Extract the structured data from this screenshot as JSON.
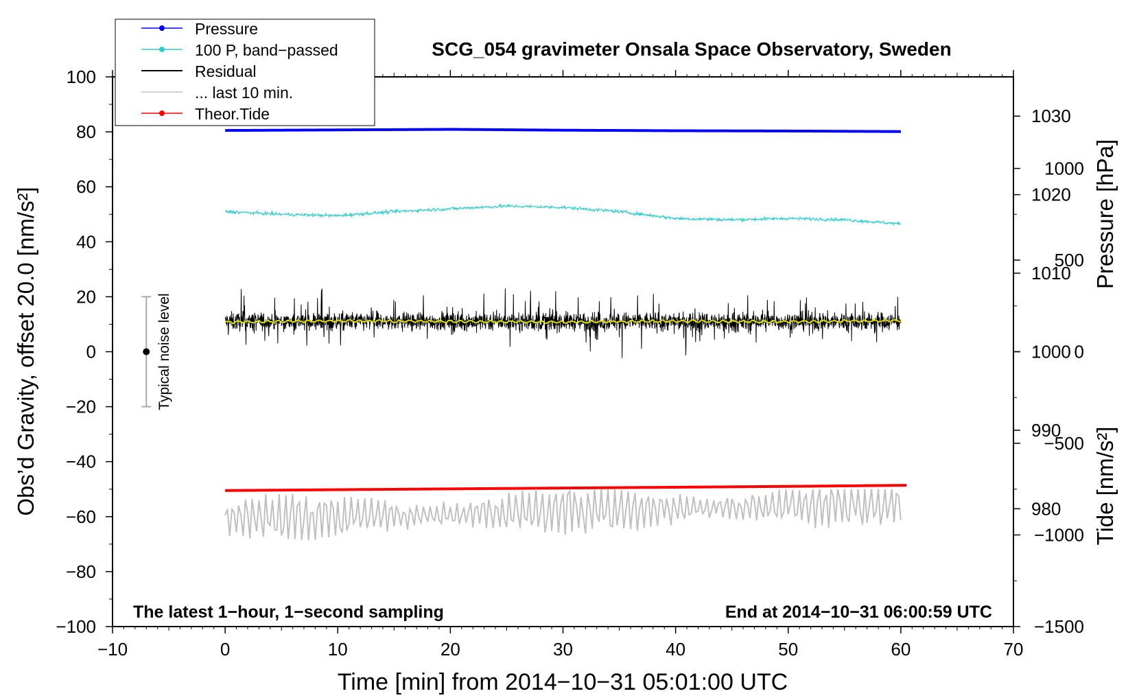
{
  "chart_data": {
    "type": "line",
    "title": "SCG_054 gravimeter Onsala Space Observatory, Sweden",
    "xlabel": "Time [min] from 2014−10−31 05:01:00 UTC",
    "ylabel": "Obs’d Gravity, offset 20.0 [nm/s²]",
    "xlim": [
      -10,
      70
    ],
    "ylim": [
      -100,
      100
    ],
    "x_ticks": [
      "−10",
      "0",
      "10",
      "20",
      "30",
      "40",
      "50",
      "60",
      "70"
    ],
    "x_tick_values": [
      -10,
      0,
      10,
      20,
      30,
      40,
      50,
      60,
      70
    ],
    "y_ticks": [
      "−100",
      "−80",
      "−60",
      "−40",
      "−20",
      "0",
      "20",
      "40",
      "60",
      "80",
      "100"
    ],
    "y_tick_values": [
      -100,
      -80,
      -60,
      -40,
      -20,
      0,
      20,
      40,
      60,
      80,
      100
    ],
    "pressure_axis": {
      "label_main": "Pressure [hPa]",
      "ticks": [
        "980",
        "990",
        "1000",
        "1010",
        "1020",
        "1030"
      ],
      "tick_values": [
        980,
        990,
        1000,
        1010,
        1020,
        1030
      ],
      "range": [
        965,
        1035
      ]
    },
    "tide_axis": {
      "label_main": "Tide [nm/s²]",
      "ticks": [
        "−1500",
        "−1000",
        "−500",
        "0",
        "500",
        "1000"
      ],
      "tick_values": [
        -1500,
        -1000,
        -500,
        0,
        500,
        1000
      ],
      "range": [
        -1500,
        1500
      ]
    },
    "legend_position": "top-left",
    "legend": [
      {
        "name": "Pressure",
        "color": "#0000ff",
        "marker": true
      },
      {
        "name": "100 P, band−passed",
        "color": "#33cccc",
        "marker": true
      },
      {
        "name": "Residual",
        "color": "#000000",
        "marker": false
      },
      {
        "name": "... last 10 min.",
        "color": "#c0c0c0",
        "marker": false
      },
      {
        "name": "Theor.Tide",
        "color": "#ff0000",
        "marker": true
      }
    ],
    "annotation_left": "The latest 1−hour, 1−second sampling",
    "annotation_right": "End at 2014−10−31 06:00:59 UTC",
    "noise_level": {
      "label": "Typical noise level",
      "x": -7,
      "y": 0,
      "range": [
        -20,
        20
      ]
    },
    "series": [
      {
        "name": "Pressure",
        "color": "#0000ff",
        "x": [
          0,
          10,
          20,
          30,
          40,
          50,
          60
        ],
        "values": [
          80.5,
          80.7,
          80.9,
          80.6,
          80.4,
          80.3,
          80.1
        ]
      },
      {
        "name": "100 P, band−passed",
        "color": "#33cccc",
        "x": [
          0,
          5,
          10,
          15,
          20,
          25,
          30,
          35,
          40,
          45,
          50,
          55,
          60
        ],
        "values": [
          51,
          50,
          49.5,
          51,
          52,
          53,
          52.5,
          51,
          48.5,
          48,
          48.5,
          48,
          46.5
        ]
      },
      {
        "name": "Residual",
        "color": "#000000",
        "x": [
          0,
          10,
          20,
          30,
          40,
          50,
          60
        ],
        "values": [
          11,
          11,
          11,
          11,
          11,
          11,
          11
        ],
        "band": [
          -3,
          23
        ]
      },
      {
        "name": "Residual smoothed",
        "color": "#dddd00",
        "x": [
          0,
          10,
          20,
          30,
          40,
          50,
          60
        ],
        "values": [
          10.8,
          11.2,
          11,
          10.8,
          11.1,
          10.9,
          11.3
        ]
      },
      {
        "name": "Theor.Tide",
        "color": "#ff0000",
        "x": [
          0,
          10,
          20,
          30,
          40,
          50,
          60.5
        ],
        "values": [
          -50.5,
          -50.2,
          -49.9,
          -49.6,
          -49.3,
          -49.0,
          -48.6
        ]
      },
      {
        "name": "... last 10 min.",
        "color": "#c0c0c0",
        "x": [
          0,
          60
        ],
        "values": [
          -61,
          -55
        ],
        "band": [
          -74,
          -50
        ]
      }
    ]
  }
}
